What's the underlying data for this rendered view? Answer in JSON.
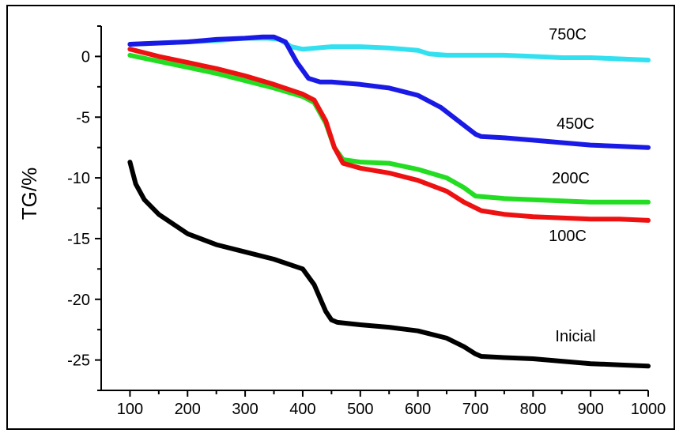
{
  "chart_data": {
    "type": "line",
    "title": "",
    "xlabel": "",
    "ylabel": "TG/%",
    "xlim": [
      50,
      1000
    ],
    "ylim": [
      -27.5,
      2.5
    ],
    "x_ticks": [
      100,
      200,
      300,
      400,
      500,
      600,
      700,
      800,
      900,
      1000
    ],
    "y_ticks": [
      0,
      -5,
      -10,
      -15,
      -20,
      -25
    ],
    "grid": false,
    "legend": "inline labels at right",
    "series": [
      {
        "name": "750C",
        "color": "#33e0f0",
        "points": [
          [
            100,
            1.0
          ],
          [
            150,
            1.1
          ],
          [
            200,
            1.2
          ],
          [
            250,
            1.3
          ],
          [
            300,
            1.5
          ],
          [
            340,
            1.5
          ],
          [
            360,
            1.4
          ],
          [
            380,
            0.8
          ],
          [
            400,
            0.6
          ],
          [
            450,
            0.8
          ],
          [
            500,
            0.8
          ],
          [
            550,
            0.7
          ],
          [
            600,
            0.5
          ],
          [
            620,
            0.2
          ],
          [
            650,
            0.1
          ],
          [
            700,
            0.1
          ],
          [
            750,
            0.1
          ],
          [
            800,
            0.0
          ],
          [
            850,
            -0.1
          ],
          [
            900,
            -0.1
          ],
          [
            950,
            -0.2
          ],
          [
            1000,
            -0.3
          ]
        ]
      },
      {
        "name": "450C",
        "color": "#1a1ae6",
        "points": [
          [
            100,
            1.0
          ],
          [
            150,
            1.1
          ],
          [
            200,
            1.2
          ],
          [
            250,
            1.4
          ],
          [
            300,
            1.5
          ],
          [
            330,
            1.6
          ],
          [
            350,
            1.6
          ],
          [
            370,
            1.2
          ],
          [
            390,
            -0.5
          ],
          [
            410,
            -1.8
          ],
          [
            430,
            -2.1
          ],
          [
            450,
            -2.1
          ],
          [
            500,
            -2.3
          ],
          [
            550,
            -2.6
          ],
          [
            600,
            -3.2
          ],
          [
            640,
            -4.2
          ],
          [
            670,
            -5.3
          ],
          [
            700,
            -6.4
          ],
          [
            710,
            -6.6
          ],
          [
            750,
            -6.7
          ],
          [
            800,
            -6.9
          ],
          [
            850,
            -7.1
          ],
          [
            900,
            -7.3
          ],
          [
            950,
            -7.4
          ],
          [
            1000,
            -7.5
          ]
        ]
      },
      {
        "name": "200C",
        "color": "#22dd22",
        "points": [
          [
            100,
            0.1
          ],
          [
            150,
            -0.4
          ],
          [
            200,
            -0.9
          ],
          [
            250,
            -1.4
          ],
          [
            300,
            -2.0
          ],
          [
            350,
            -2.6
          ],
          [
            400,
            -3.3
          ],
          [
            420,
            -3.8
          ],
          [
            440,
            -5.5
          ],
          [
            455,
            -7.5
          ],
          [
            470,
            -8.5
          ],
          [
            500,
            -8.7
          ],
          [
            550,
            -8.8
          ],
          [
            600,
            -9.3
          ],
          [
            650,
            -10.0
          ],
          [
            680,
            -10.8
          ],
          [
            700,
            -11.5
          ],
          [
            750,
            -11.7
          ],
          [
            800,
            -11.8
          ],
          [
            850,
            -11.9
          ],
          [
            900,
            -12.0
          ],
          [
            950,
            -12.0
          ],
          [
            1000,
            -12.0
          ]
        ]
      },
      {
        "name": "100C",
        "color": "#ee1111",
        "points": [
          [
            100,
            0.6
          ],
          [
            150,
            0.0
          ],
          [
            200,
            -0.5
          ],
          [
            250,
            -1.0
          ],
          [
            300,
            -1.6
          ],
          [
            350,
            -2.3
          ],
          [
            400,
            -3.1
          ],
          [
            420,
            -3.6
          ],
          [
            440,
            -5.3
          ],
          [
            455,
            -7.5
          ],
          [
            470,
            -8.8
          ],
          [
            500,
            -9.2
          ],
          [
            550,
            -9.6
          ],
          [
            600,
            -10.2
          ],
          [
            650,
            -11.1
          ],
          [
            680,
            -12.0
          ],
          [
            710,
            -12.7
          ],
          [
            750,
            -13.0
          ],
          [
            800,
            -13.2
          ],
          [
            850,
            -13.3
          ],
          [
            900,
            -13.4
          ],
          [
            950,
            -13.4
          ],
          [
            1000,
            -13.5
          ]
        ]
      },
      {
        "name": "Inicial",
        "color": "#000000",
        "points": [
          [
            100,
            -8.7
          ],
          [
            110,
            -10.5
          ],
          [
            125,
            -11.8
          ],
          [
            150,
            -13.0
          ],
          [
            200,
            -14.6
          ],
          [
            250,
            -15.5
          ],
          [
            300,
            -16.1
          ],
          [
            350,
            -16.7
          ],
          [
            400,
            -17.5
          ],
          [
            420,
            -18.8
          ],
          [
            440,
            -21.0
          ],
          [
            450,
            -21.7
          ],
          [
            460,
            -21.9
          ],
          [
            500,
            -22.1
          ],
          [
            550,
            -22.3
          ],
          [
            600,
            -22.6
          ],
          [
            650,
            -23.2
          ],
          [
            680,
            -23.9
          ],
          [
            700,
            -24.5
          ],
          [
            710,
            -24.7
          ],
          [
            750,
            -24.8
          ],
          [
            800,
            -24.9
          ],
          [
            850,
            -25.1
          ],
          [
            900,
            -25.3
          ],
          [
            950,
            -25.4
          ],
          [
            1000,
            -25.5
          ]
        ]
      }
    ]
  }
}
